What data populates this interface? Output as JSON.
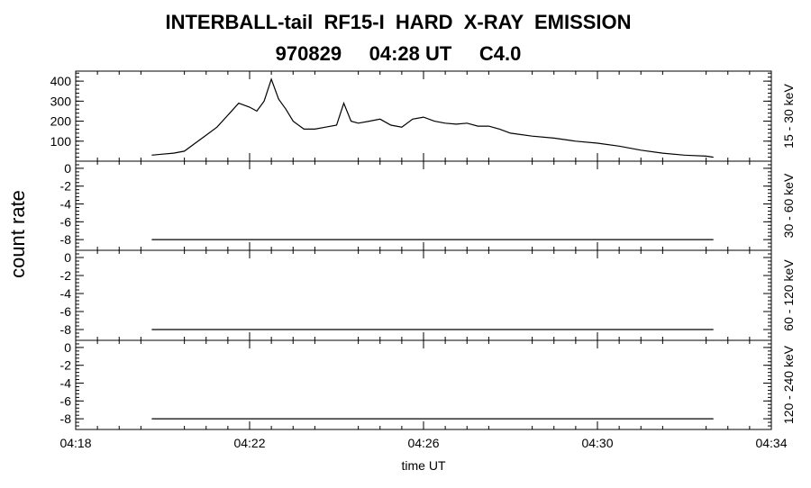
{
  "header": {
    "title_line1": "INTERBALL-tail  RF15-I  HARD  X-RAY  EMISSION",
    "title_line2": "970829     04:28 UT     C4.0"
  },
  "colors": {
    "axes": "#000000",
    "trace": "#000000",
    "background": "#ffffff"
  },
  "chart_data": {
    "type": "line",
    "grid": false,
    "legend": "none",
    "ylabel": "count rate",
    "xlabel": "time UT",
    "x_range": [
      "04:18",
      "04:34"
    ],
    "x_ticks": [
      "04:18",
      "04:22",
      "04:26",
      "04:30",
      "04:34"
    ],
    "panels": [
      {
        "name": "15 - 30 keV",
        "ylim": [
          0,
          450
        ],
        "y_ticks": [
          100,
          200,
          300,
          400
        ],
        "y_tick_labels": [
          "100",
          "200",
          "300",
          "400"
        ],
        "x": [
          "04:19:45",
          "04:20:00",
          "04:20:15",
          "04:20:30",
          "04:20:45",
          "04:21:00",
          "04:21:15",
          "04:21:30",
          "04:21:45",
          "04:22:00",
          "04:22:10",
          "04:22:20",
          "04:22:30",
          "04:22:40",
          "04:22:50",
          "04:23:00",
          "04:23:15",
          "04:23:30",
          "04:23:45",
          "04:24:00",
          "04:24:10",
          "04:24:20",
          "04:24:30",
          "04:24:45",
          "04:25:00",
          "04:25:15",
          "04:25:30",
          "04:25:45",
          "04:26:00",
          "04:26:15",
          "04:26:30",
          "04:26:45",
          "04:27:00",
          "04:27:15",
          "04:27:30",
          "04:27:45",
          "04:28:00",
          "04:28:30",
          "04:29:00",
          "04:29:30",
          "04:30:00",
          "04:30:30",
          "04:31:00",
          "04:31:30",
          "04:32:00",
          "04:32:30",
          "04:32:40"
        ],
        "values": [
          30,
          35,
          40,
          50,
          90,
          130,
          170,
          230,
          290,
          270,
          250,
          300,
          410,
          310,
          260,
          200,
          160,
          160,
          170,
          180,
          290,
          200,
          190,
          200,
          210,
          180,
          170,
          210,
          220,
          200,
          190,
          185,
          190,
          175,
          175,
          160,
          140,
          125,
          115,
          100,
          90,
          75,
          55,
          40,
          30,
          25,
          20
        ]
      },
      {
        "name": "30 - 60 keV",
        "ylim": [
          -9.2,
          0.8
        ],
        "y_ticks": [
          -8,
          -6,
          -4,
          -2,
          0
        ],
        "y_tick_labels": [
          "-8",
          "-6",
          "-4",
          "-2",
          "0"
        ],
        "x": [
          "04:19:45",
          "04:32:40"
        ],
        "values": [
          -8,
          -8
        ]
      },
      {
        "name": "60 - 120 keV",
        "ylim": [
          -9.2,
          0.8
        ],
        "y_ticks": [
          -8,
          -6,
          -4,
          -2,
          0
        ],
        "y_tick_labels": [
          "-8",
          "-6",
          "-4",
          "-2",
          "0"
        ],
        "x": [
          "04:19:45",
          "04:32:40"
        ],
        "values": [
          -8,
          -8
        ]
      },
      {
        "name": "120 - 240 keV",
        "ylim": [
          -9.2,
          0.8
        ],
        "y_ticks": [
          -8,
          -6,
          -4,
          -2,
          0
        ],
        "y_tick_labels": [
          "-8",
          "-6",
          "-4",
          "-2",
          "0"
        ],
        "x": [
          "04:19:45",
          "04:32:40"
        ],
        "values": [
          -8,
          -8
        ]
      }
    ]
  }
}
